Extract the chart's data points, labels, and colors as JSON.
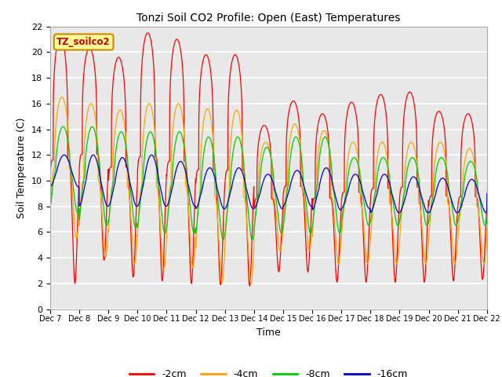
{
  "title": "Tonzi Soil CO2 Profile: Open (East) Temperatures",
  "xlabel": "Time",
  "ylabel": "Soil Temperature (C)",
  "ylim": [
    0,
    22
  ],
  "yticks": [
    0,
    2,
    4,
    6,
    8,
    10,
    12,
    14,
    16,
    18,
    20,
    22
  ],
  "legend_entries": [
    "-2cm",
    "-4cm",
    "-8cm",
    "-16cm"
  ],
  "legend_colors": [
    "#FF0000",
    "#FFA500",
    "#00CC00",
    "#0000CC"
  ],
  "watermark_text": "TZ_soilco2",
  "background_color": "#FFFFFF",
  "plot_bg_color": "#E8E8E8",
  "annotation_bg": "#FFFF99",
  "annotation_border": "#CC8800",
  "xtick_labels": [
    "Dec 7",
    "Dec 8",
    "Dec 9",
    "Dec 10",
    "Dec 11",
    "Dec 12",
    "Dec 13",
    "Dec 14",
    "Dec 15",
    "Dec 16",
    "Dec 17",
    "Dec 18",
    "Dec 19",
    "Dec 20",
    "Dec 21",
    "Dec 22"
  ],
  "d2_maxes": [
    21.2,
    20.3,
    19.6,
    21.5,
    21.0,
    19.8,
    19.8,
    14.3,
    16.2,
    15.2,
    16.1,
    16.7,
    16.9,
    15.4,
    15.2,
    13.5
  ],
  "d2_mines": [
    2.0,
    3.8,
    2.5,
    2.2,
    2.0,
    1.9,
    1.8,
    2.9,
    2.9,
    2.1,
    2.1,
    2.1,
    2.1,
    2.2,
    2.3,
    2.8
  ],
  "d4_maxes": [
    16.5,
    16.0,
    15.5,
    16.0,
    16.0,
    15.6,
    15.5,
    13.0,
    14.4,
    13.9,
    13.0,
    13.0,
    13.0,
    13.0,
    12.5,
    11.5
  ],
  "d4_mines": [
    5.5,
    4.0,
    3.5,
    3.0,
    3.2,
    2.0,
    2.0,
    4.5,
    4.5,
    3.5,
    3.5,
    3.5,
    3.5,
    3.5,
    3.5,
    4.8
  ],
  "d8_maxes": [
    14.2,
    14.2,
    13.8,
    13.8,
    13.8,
    13.4,
    13.4,
    12.6,
    13.4,
    13.4,
    11.8,
    11.8,
    11.8,
    11.8,
    11.5,
    12.0
  ],
  "d8_mines": [
    7.5,
    6.5,
    6.3,
    5.9,
    5.9,
    5.4,
    5.4,
    5.9,
    5.9,
    5.9,
    6.5,
    6.5,
    6.5,
    6.5,
    6.5,
    6.7
  ],
  "d16_maxes": [
    12.0,
    12.0,
    11.8,
    12.0,
    11.5,
    11.0,
    11.0,
    10.5,
    10.8,
    11.0,
    10.5,
    10.5,
    10.3,
    10.2,
    10.1,
    10.8
  ],
  "d16_mines": [
    9.5,
    8.0,
    8.0,
    8.0,
    8.0,
    7.8,
    7.8,
    7.8,
    8.0,
    7.7,
    7.8,
    7.5,
    7.5,
    7.5,
    7.5,
    9.0
  ]
}
